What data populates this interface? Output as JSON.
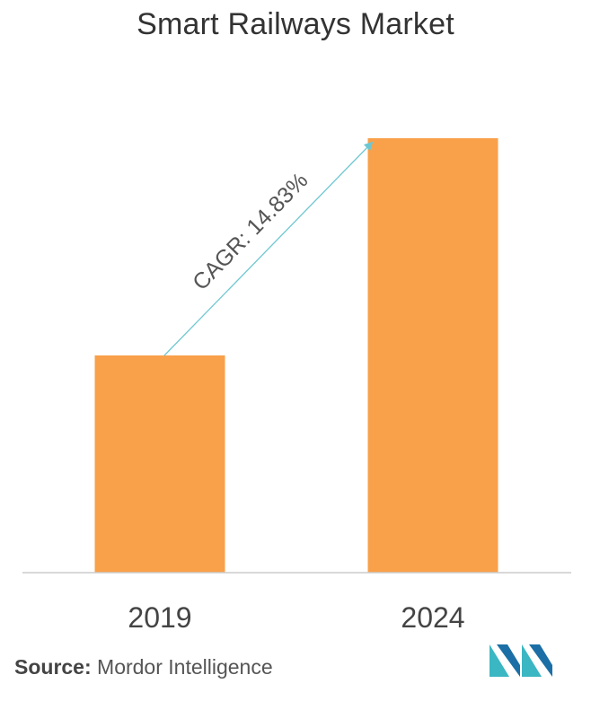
{
  "chart_data": {
    "type": "bar",
    "title": "Smart Railways Market",
    "categories": [
      "2019",
      "2024"
    ],
    "values": [
      1.0,
      2.0
    ],
    "ylim": [
      0,
      2.0
    ],
    "xlabel": "",
    "ylabel": "",
    "grid": false,
    "legend": "none",
    "annotation": {
      "text": "CAGR: 14.83%",
      "from": "2019",
      "to": "2024"
    }
  },
  "colors": {
    "bar": "#F9A04A",
    "arrow": "#6DC7D1",
    "axis": "#CCCCCC",
    "tick_text": "#444444",
    "annotation_text": "#555555",
    "logo_teal": "#3BB6C3",
    "logo_dark": "#1C6FA6"
  },
  "source": {
    "label": "Source:",
    "text": " Mordor Intelligence"
  },
  "logo": {
    "icon": "mordor-intelligence-logo"
  }
}
